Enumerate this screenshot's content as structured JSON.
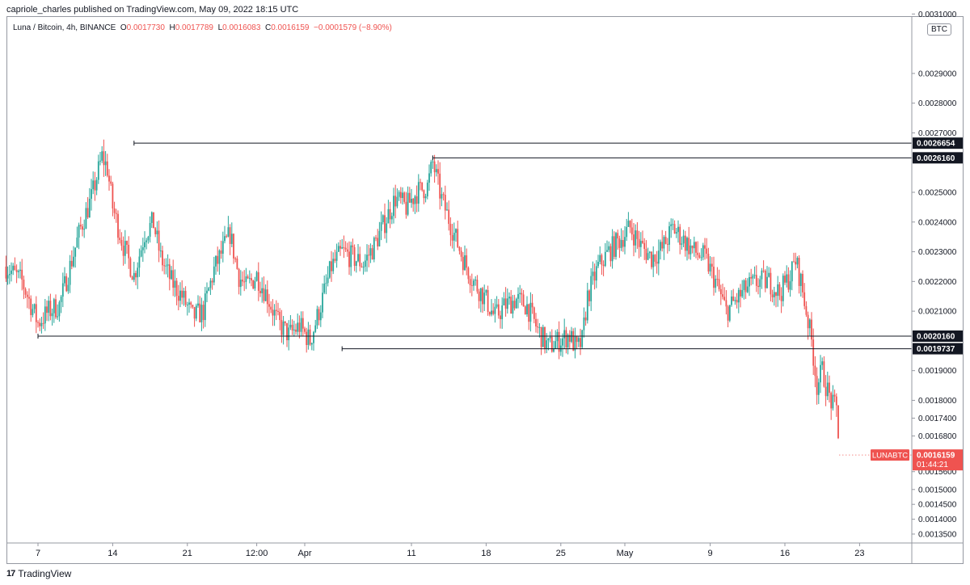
{
  "header": {
    "text": "capriole_charles published on TradingView.com, May 09, 2022 18:15 UTC"
  },
  "legend": {
    "symbol": "Luna / Bitcoin, 4h, BINANCE",
    "open_key": "O",
    "open": "0.0017730",
    "high_key": "H",
    "high": "0.0017789",
    "low_key": "L",
    "low": "0.0016083",
    "close_key": "C",
    "close": "0.0016159",
    "change": "−0.0001579 (−8.90%)"
  },
  "currency_badge": "BTC",
  "footer": {
    "logo": "17",
    "brand": "TradingView"
  },
  "colors": {
    "up": "#26a69a",
    "down": "#ef5350",
    "line": "#131722",
    "price_tag": "#ef5350"
  },
  "chart_data": {
    "type": "candlestick",
    "symbol": "LUNABTC",
    "interval": "4h",
    "ylim": [
      0.00132,
      0.00309
    ],
    "x_ticks": [
      "7",
      "14",
      "21",
      "12:00",
      "Apr",
      "11",
      "18",
      "25",
      "May",
      "9",
      "16",
      "23"
    ],
    "y_ticks": [
      "0.0031000",
      "0.0029000",
      "0.0028000",
      "0.0027000",
      "0.0025000",
      "0.0024000",
      "0.0023000",
      "0.0022000",
      "0.0021000",
      "0.0019000",
      "0.0018000",
      "0.0017400",
      "0.0016800",
      "0.0015600",
      "0.0015000",
      "0.0014500",
      "0.0014000",
      "0.0013500"
    ],
    "y_tick_values": [
      0.0031,
      0.0029,
      0.0028,
      0.0027,
      0.0025,
      0.0024,
      0.0023,
      0.0022,
      0.0021,
      0.0019,
      0.0018,
      0.00174,
      0.00168,
      0.00156,
      0.0015,
      0.00145,
      0.0014,
      0.00135
    ],
    "levels": [
      {
        "label": "0.0026654",
        "value": 0.0026654,
        "start_day": 9
      },
      {
        "label": "0.0026160",
        "value": 0.002616,
        "start_day": 37
      },
      {
        "label": "0.0020160",
        "value": 0.002016,
        "start_day": 0
      },
      {
        "label": "0.0019737",
        "value": 0.0019737,
        "start_day": 28.5
      }
    ],
    "last_price": {
      "symbol_label": "LUNABTC",
      "price": "0.0016159",
      "countdown": "01:44:21",
      "value": 0.0016159
    },
    "day_ticks": [
      {
        "label": "7",
        "day": 0
      },
      {
        "label": "14",
        "day": 7
      },
      {
        "label": "21",
        "day": 14
      },
      {
        "label": "12:00",
        "day": 20.5
      },
      {
        "label": "Apr",
        "day": 25
      },
      {
        "label": "11",
        "day": 35
      },
      {
        "label": "18",
        "day": 42
      },
      {
        "label": "25",
        "day": 49
      },
      {
        "label": "May",
        "day": 55
      },
      {
        "label": "9",
        "day": 63
      },
      {
        "label": "16",
        "day": 70
      },
      {
        "label": "23",
        "day": 77
      }
    ],
    "anchors": [
      [
        -3,
        0.00225
      ],
      [
        -1.5,
        0.0022
      ],
      [
        0,
        0.00206
      ],
      [
        1,
        0.0021
      ],
      [
        2,
        0.00212
      ],
      [
        3,
        0.00225
      ],
      [
        4,
        0.00238
      ],
      [
        5,
        0.00248
      ],
      [
        6,
        0.00262
      ],
      [
        6.5,
        0.00258
      ],
      [
        7,
        0.00245
      ],
      [
        8,
        0.00232
      ],
      [
        9,
        0.00222
      ],
      [
        10,
        0.00236
      ],
      [
        10.8,
        0.0024
      ],
      [
        11.5,
        0.00228
      ],
      [
        12.5,
        0.0022
      ],
      [
        13.5,
        0.00215
      ],
      [
        14.5,
        0.00208
      ],
      [
        15.5,
        0.0021
      ],
      [
        16.5,
        0.00224
      ],
      [
        17.5,
        0.00232
      ],
      [
        18,
        0.00236
      ],
      [
        18.8,
        0.00222
      ],
      [
        19.5,
        0.00218
      ],
      [
        20.5,
        0.00222
      ],
      [
        21.5,
        0.00215
      ],
      [
        22.5,
        0.00206
      ],
      [
        23.5,
        0.00202
      ],
      [
        24.5,
        0.00205
      ],
      [
        25.5,
        0.002
      ],
      [
        26.5,
        0.00212
      ],
      [
        27.5,
        0.00225
      ],
      [
        28.5,
        0.0023
      ],
      [
        29.5,
        0.00228
      ],
      [
        30.5,
        0.00226
      ],
      [
        31.5,
        0.00232
      ],
      [
        32.5,
        0.0024
      ],
      [
        33.5,
        0.00248
      ],
      [
        34.5,
        0.00245
      ],
      [
        35.5,
        0.0025
      ],
      [
        36.5,
        0.00252
      ],
      [
        37,
        0.0026
      ],
      [
        37.8,
        0.00248
      ],
      [
        38.8,
        0.00238
      ],
      [
        39.8,
        0.00228
      ],
      [
        40.8,
        0.0022
      ],
      [
        41.8,
        0.00215
      ],
      [
        42.8,
        0.00208
      ],
      [
        43.8,
        0.00212
      ],
      [
        44.8,
        0.00214
      ],
      [
        45.8,
        0.00212
      ],
      [
        46.8,
        0.00204
      ],
      [
        47.8,
        0.00198
      ],
      [
        48.8,
        0.002
      ],
      [
        49.8,
        0.00202
      ],
      [
        50.5,
        0.00197
      ],
      [
        51,
        0.002
      ],
      [
        51.5,
        0.00215
      ],
      [
        52.5,
        0.00225
      ],
      [
        53.5,
        0.0023
      ],
      [
        54.5,
        0.00234
      ],
      [
        55.5,
        0.00238
      ],
      [
        56.5,
        0.00232
      ],
      [
        57.5,
        0.00228
      ],
      [
        58.5,
        0.00231
      ],
      [
        59.5,
        0.00238
      ],
      [
        60.5,
        0.00234
      ],
      [
        61.5,
        0.0023
      ],
      [
        62.5,
        0.00228
      ],
      [
        63.5,
        0.0022
      ],
      [
        64.5,
        0.0021
      ],
      [
        65.5,
        0.00214
      ],
      [
        66.5,
        0.00218
      ],
      [
        67.5,
        0.0022
      ],
      [
        68.5,
        0.0022
      ],
      [
        69.5,
        0.00216
      ],
      [
        70.5,
        0.00222
      ],
      [
        71,
        0.00227
      ],
      [
        71.5,
        0.0022
      ],
      [
        72,
        0.0021
      ],
      [
        72.5,
        0.002
      ],
      [
        73,
        0.00185
      ],
      [
        73.5,
        0.0019
      ],
      [
        74,
        0.00183
      ],
      [
        74.5,
        0.00178
      ],
      [
        74.9,
        0.00177
      ],
      [
        75.1,
        0.00162
      ]
    ]
  }
}
